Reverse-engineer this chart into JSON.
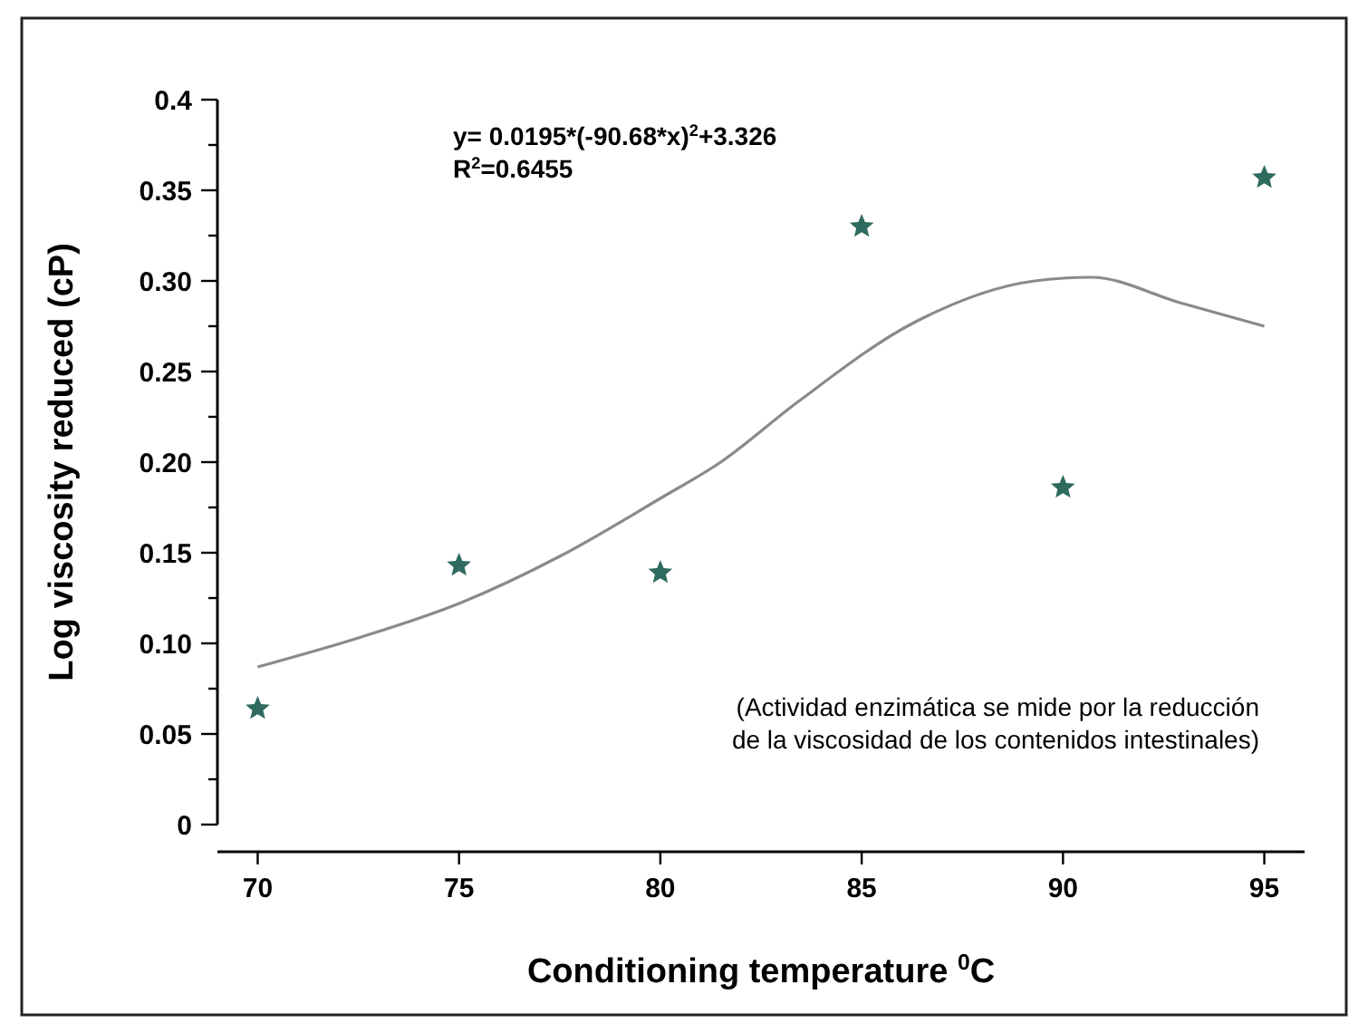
{
  "chart_data": {
    "type": "scatter",
    "xlabel": "Conditioning temperature $^{0}$C",
    "ylabel": "Log viscosity reduced (cP)",
    "annotations": [
      "y= 0.0195*(-90.68*x)$^{2}$+3.326",
      "R$^{2}$=0.6455",
      "(Actividad enzimática se mide por la reducción\nde la viscosidad de los contenidos intestinales)"
    ],
    "series": [
      {
        "color": "#2e6b5e",
        "marker": "star",
        "x": [
          70,
          75,
          80,
          85,
          90,
          95
        ],
        "values": [
          0.064,
          0.143,
          0.139,
          0.33,
          0.186,
          0.357
        ]
      },
      {
        "type": "line",
        "color": "#8a8a8a",
        "marker": "none",
        "line_style": "solid",
        "x": [
          70,
          72.5,
          75,
          77.5,
          80,
          81.5,
          83.4,
          86.3,
          89.3,
          90.7,
          92.9,
          95
        ],
        "values": [
          0.087,
          0.103,
          0.122,
          0.148,
          0.18,
          0.2,
          0.233,
          0.277,
          0.3,
          0.302,
          0.288,
          0.275
        ]
      }
    ],
    "xlim": [
      69,
      96
    ],
    "xticks": [
      70,
      75,
      80,
      85,
      90,
      95
    ],
    "ylim": [
      0,
      0.4
    ],
    "yticks": [
      {
        "value": 0,
        "label": "0"
      },
      {
        "value": 0.025,
        "label": null
      },
      {
        "value": 0.05,
        "label": "0.05"
      },
      {
        "value": 0.075,
        "label": null
      },
      {
        "value": 0.1,
        "label": "0.10"
      },
      {
        "value": 0.125,
        "label": null
      },
      {
        "value": 0.15,
        "label": "0.15"
      },
      {
        "value": 0.175,
        "label": null
      },
      {
        "value": 0.2,
        "label": "0.20"
      },
      {
        "value": 0.225,
        "label": null
      },
      {
        "value": 0.25,
        "label": "0.25"
      },
      {
        "value": 0.275,
        "label": null
      },
      {
        "value": 0.3,
        "label": "0.30"
      },
      {
        "value": 0.325,
        "label": null
      },
      {
        "value": 0.35,
        "label": "0.35"
      },
      {
        "value": 0.375,
        "label": null
      },
      {
        "value": 0.4,
        "label": "0.4"
      }
    ],
    "grid": false
  }
}
